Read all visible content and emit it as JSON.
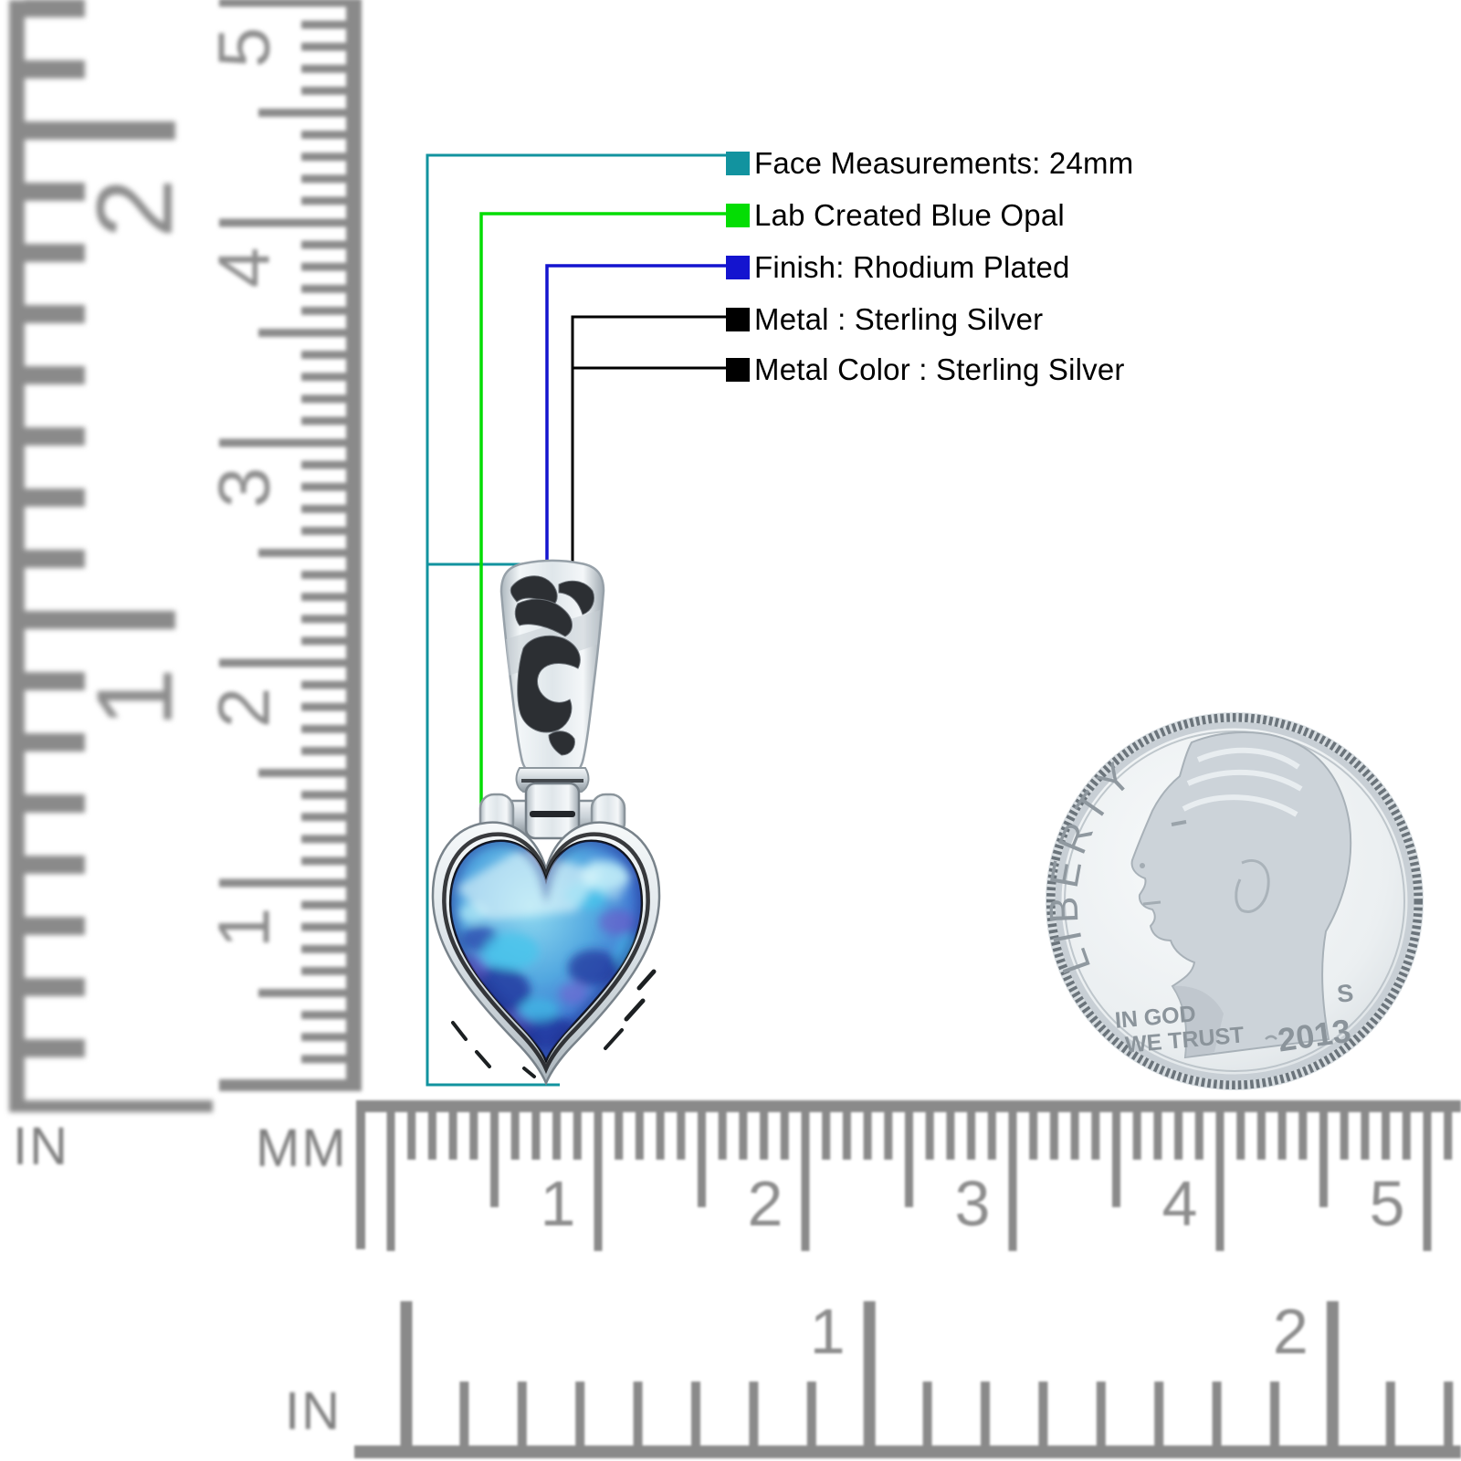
{
  "annotations": {
    "items": [
      {
        "label": "Face Measurements: 24mm",
        "color": "#12939f"
      },
      {
        "label": "Lab Created Blue Opal",
        "color": "#04dd04"
      },
      {
        "label": "Finish: Rhodium Plated",
        "color": "#1414cf"
      },
      {
        "label": "Metal : Sterling Silver",
        "color": "#000000"
      },
      {
        "label": "Metal Color : Sterling Silver",
        "color": "#000000"
      }
    ]
  },
  "rulers": {
    "vertical_inch": {
      "unit_label": "IN",
      "numbers": [
        "2",
        "1"
      ]
    },
    "vertical_mm": {
      "unit_label": "MM",
      "numbers": [
        "5",
        "4",
        "3",
        "2",
        "1"
      ]
    },
    "horizontal_mm": {
      "numbers": [
        "1",
        "2",
        "3",
        "4",
        "5"
      ]
    },
    "horizontal_inch": {
      "unit_label": "IN",
      "numbers": [
        "1",
        "2"
      ]
    }
  },
  "coin": {
    "liberty": "LIBERTY",
    "motto_line1": "IN GOD",
    "motto_line2": "WE TRUST",
    "date": "2013",
    "mint_mark": "S"
  }
}
